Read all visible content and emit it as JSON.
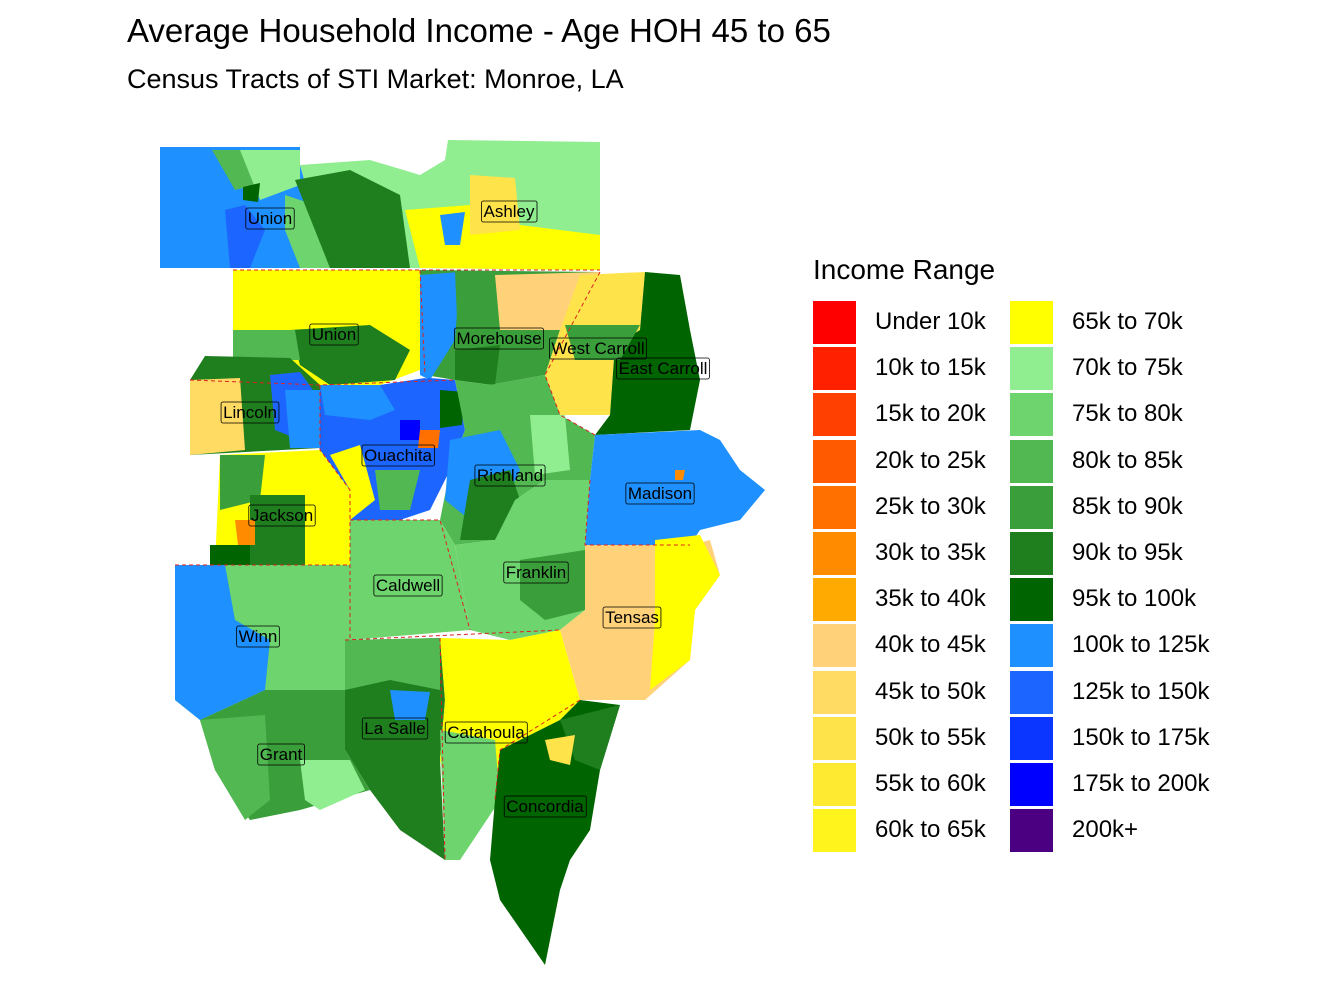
{
  "title": "Average Household Income - Age HOH 45 to 65",
  "subtitle": "Census Tracts of STI Market: Monroe, LA",
  "legend": {
    "title": "Income Range",
    "items": [
      {
        "label": "Under 10k",
        "color": "#ff0000"
      },
      {
        "label": "10k to 15k",
        "color": "#ff2000"
      },
      {
        "label": "15k to 20k",
        "color": "#ff4000"
      },
      {
        "label": "20k to 25k",
        "color": "#ff5a00"
      },
      {
        "label": "25k to 30k",
        "color": "#ff7000"
      },
      {
        "label": "30k to 35k",
        "color": "#ff8c00"
      },
      {
        "label": "35k to 40k",
        "color": "#ffaa00"
      },
      {
        "label": "40k to 45k",
        "color": "#ffd27a"
      },
      {
        "label": "45k to 50k",
        "color": "#ffdb64"
      },
      {
        "label": "50k to 55k",
        "color": "#ffe34a"
      },
      {
        "label": "55k to 60k",
        "color": "#ffea32"
      },
      {
        "label": "60k to 65k",
        "color": "#fff41c"
      },
      {
        "label": "65k to 70k",
        "color": "#ffff00"
      },
      {
        "label": "70k to 75k",
        "color": "#90ee90"
      },
      {
        "label": "75k to 80k",
        "color": "#6ed46e"
      },
      {
        "label": "80k to 85k",
        "color": "#52b852"
      },
      {
        "label": "85k to 90k",
        "color": "#3a9e3a"
      },
      {
        "label": "90k to 95k",
        "color": "#1f7f1f"
      },
      {
        "label": "95k to 100k",
        "color": "#006400"
      },
      {
        "label": "100k to 125k",
        "color": "#1e90ff"
      },
      {
        "label": "125k to 150k",
        "color": "#1c66ff"
      },
      {
        "label": "150k to 175k",
        "color": "#0a36ff"
      },
      {
        "label": "175k to 200k",
        "color": "#0000ff"
      },
      {
        "label": "200k+",
        "color": "#4b0082"
      }
    ]
  },
  "parishes": [
    {
      "name": "Union",
      "color": "#1e90ff"
    },
    {
      "name": "Ashley",
      "color": "#90ee90"
    },
    {
      "name": "Union",
      "color": "#ffff00"
    },
    {
      "name": "Morehouse",
      "color": "#3a9e3a"
    },
    {
      "name": "West Carroll",
      "color": "#ffe34a"
    },
    {
      "name": "East Carroll",
      "color": "#006400"
    },
    {
      "name": "Lincoln",
      "color": "#1f7f1f"
    },
    {
      "name": "Ouachita",
      "color": "#1c66ff"
    },
    {
      "name": "Richland",
      "color": "#52b852"
    },
    {
      "name": "Madison",
      "color": "#1e90ff"
    },
    {
      "name": "Jackson",
      "color": "#ffff00"
    },
    {
      "name": "Caldwell",
      "color": "#6ed46e"
    },
    {
      "name": "Franklin",
      "color": "#6ed46e"
    },
    {
      "name": "Tensas",
      "color": "#ffd27a"
    },
    {
      "name": "Winn",
      "color": "#6ed46e"
    },
    {
      "name": "La Salle",
      "color": "#1f7f1f"
    },
    {
      "name": "Catahoula",
      "color": "#ffff00"
    },
    {
      "name": "Grant",
      "color": "#3a9e3a"
    },
    {
      "name": "Concordia",
      "color": "#006400"
    }
  ]
}
